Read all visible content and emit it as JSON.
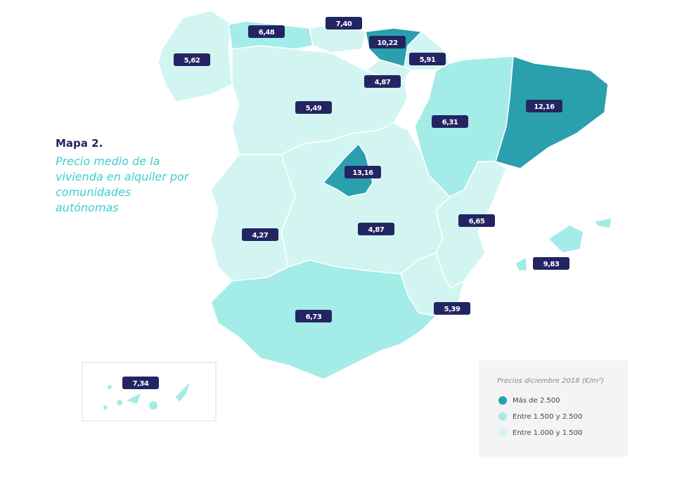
{
  "header": {
    "number": "Mapa 2.",
    "title": "Precio medio de la vivienda en alquiler por comunidades autónomas"
  },
  "map": {
    "labels": [
      "5,62",
      "6,48",
      "7,40",
      "10,22",
      "5,91",
      "4,87",
      "5,49",
      "12,16",
      "6,31",
      "13,16",
      "6,65",
      "4,27",
      "4,87",
      "9,83",
      "5,39",
      "6,73",
      "7,34"
    ]
  },
  "legend": {
    "title": "Precios diciembre 2018 (€/m²)",
    "items": [
      "Más de 2.500",
      "Entre 1.500 y 2.500",
      "Entre 1.000 y 1.500"
    ]
  }
}
